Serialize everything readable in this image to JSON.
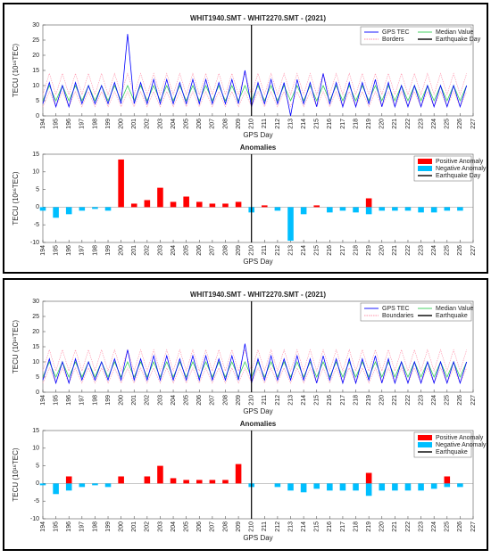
{
  "chart_data": [
    {
      "type": "line",
      "title": "WHIT1940.SMT - WHIT2270.SMT - (2021)",
      "xlabel": "GPS Day",
      "ylabel": "TECU (10¹⁶TEC)",
      "x": [
        194,
        194.5,
        195,
        195.5,
        196,
        196.5,
        197,
        197.5,
        198,
        198.5,
        199,
        199.5,
        200,
        200.5,
        201,
        201.5,
        202,
        202.5,
        203,
        203.5,
        204,
        204.5,
        205,
        205.5,
        206,
        206.5,
        207,
        207.5,
        208,
        208.5,
        209,
        209.5,
        210,
        210.5,
        211,
        211.5,
        212,
        212.5,
        213,
        213.5,
        214,
        214.5,
        215,
        215.5,
        216,
        216.5,
        217,
        217.5,
        218,
        218.5,
        219,
        219.5,
        220,
        220.5,
        221,
        221.5,
        222,
        222.5,
        223,
        223.5,
        224,
        224.5,
        225,
        225.5,
        226,
        226.5
      ],
      "xlim": [
        194,
        227
      ],
      "xticks": [
        194,
        195,
        196,
        197,
        198,
        199,
        200,
        201,
        202,
        203,
        204,
        205,
        206,
        207,
        208,
        209,
        210,
        211,
        212,
        213,
        214,
        215,
        216,
        217,
        218,
        219,
        220,
        221,
        222,
        223,
        224,
        225,
        226,
        227
      ],
      "ylim": [
        0,
        30
      ],
      "yticks": [
        0,
        5,
        10,
        15,
        20,
        25,
        30
      ],
      "legend": "upper right",
      "series": [
        {
          "name": "GPS TEC",
          "color": "#0000ff",
          "values": [
            4,
            11,
            3,
            10,
            3,
            11,
            4,
            10,
            4,
            10,
            4,
            11,
            4,
            27,
            4,
            11,
            4,
            12,
            4,
            12,
            4,
            11,
            4,
            12,
            4,
            12,
            4,
            11,
            4,
            12,
            4,
            15,
            3,
            11,
            4,
            12,
            4,
            11,
            0,
            12,
            4,
            11,
            3,
            14,
            4,
            11,
            3,
            11,
            3,
            11,
            4,
            12,
            3,
            11,
            3,
            10,
            3,
            10,
            3,
            10,
            3,
            10,
            3,
            10,
            3,
            10
          ]
        },
        {
          "name": "Median Value",
          "color": "#33cc55",
          "values": [
            5,
            10,
            5,
            10,
            5,
            10,
            5,
            10,
            5,
            10,
            5,
            10,
            5,
            10,
            5,
            10,
            5,
            10,
            5,
            10,
            5,
            10,
            5,
            10,
            5,
            10,
            5,
            10,
            5,
            10,
            5,
            10,
            5,
            10,
            5,
            10,
            5,
            10,
            5,
            10,
            5,
            10,
            5,
            10,
            5,
            10,
            5,
            10,
            5,
            10,
            5,
            10,
            5,
            10,
            5,
            10,
            5,
            10,
            5,
            10,
            5,
            10,
            5,
            10,
            5,
            10
          ]
        },
        {
          "name": "Borders",
          "color": "#ff8fa8",
          "style": "dotted",
          "values": [
            7,
            14,
            7,
            14,
            7,
            14,
            7,
            14,
            7,
            14,
            7,
            14,
            7,
            14,
            7,
            14,
            7,
            14,
            7,
            14,
            7,
            14,
            7,
            14,
            7,
            14,
            7,
            14,
            7,
            14,
            7,
            14,
            7,
            14,
            7,
            14,
            7,
            14,
            7,
            14,
            7,
            14,
            7,
            14,
            7,
            14,
            7,
            14,
            7,
            14,
            7,
            14,
            7,
            14,
            7,
            14,
            7,
            14,
            7,
            14,
            7,
            14,
            7,
            14,
            7,
            14
          ],
          "lower": [
            3,
            8,
            3,
            8,
            3,
            8,
            3,
            8,
            3,
            8,
            3,
            8,
            3,
            8,
            3,
            8,
            3,
            8,
            3,
            8,
            3,
            8,
            3,
            8,
            3,
            8,
            3,
            8,
            3,
            8,
            3,
            8,
            3,
            8,
            3,
            8,
            3,
            8,
            3,
            8,
            3,
            8,
            3,
            8,
            3,
            8,
            3,
            8,
            3,
            8,
            3,
            8,
            3,
            8,
            3,
            8,
            3,
            8,
            3,
            8,
            3,
            8,
            3,
            8,
            3,
            8
          ]
        }
      ],
      "events": [
        {
          "name": "Earthquake Day",
          "x": 210,
          "color": "#000000"
        }
      ]
    },
    {
      "type": "bar",
      "title": "Anomalies",
      "xlabel": "GPS Day",
      "ylabel": "TECU (10¹⁶TEC)",
      "x": [
        194,
        195,
        196,
        197,
        198,
        199,
        200,
        201,
        202,
        203,
        204,
        205,
        206,
        207,
        208,
        209,
        210,
        211,
        212,
        213,
        214,
        215,
        216,
        217,
        218,
        219,
        220,
        221,
        222,
        223,
        224,
        225,
        226
      ],
      "xlim": [
        194,
        227
      ],
      "xticks": [
        194,
        195,
        196,
        197,
        198,
        199,
        200,
        201,
        202,
        203,
        204,
        205,
        206,
        207,
        208,
        209,
        210,
        211,
        212,
        213,
        214,
        215,
        216,
        217,
        218,
        219,
        220,
        221,
        222,
        223,
        224,
        225,
        226,
        227
      ],
      "ylim": [
        -10,
        15
      ],
      "yticks": [
        -10,
        -5,
        0,
        5,
        10,
        15
      ],
      "legend": "upper right",
      "series": [
        {
          "name": "Positive Anomaly",
          "color": "#ff0000",
          "values": [
            null,
            null,
            null,
            null,
            null,
            null,
            13.5,
            1,
            2,
            5.5,
            1.5,
            3,
            1.5,
            1,
            1,
            1.5,
            null,
            0.5,
            null,
            null,
            null,
            0.5,
            null,
            null,
            null,
            2.5,
            null,
            null,
            null,
            null,
            null,
            null,
            null
          ]
        },
        {
          "name": "Negative Anomaly",
          "color": "#00bfff",
          "values": [
            -1,
            -3,
            -2,
            -1,
            -0.5,
            -1,
            null,
            null,
            null,
            null,
            null,
            null,
            null,
            null,
            null,
            null,
            -1.5,
            null,
            -1,
            -9.5,
            -2,
            null,
            -1.5,
            -1,
            -1.5,
            -2,
            -1,
            -1,
            -1,
            -1.5,
            -1.5,
            -1,
            -1
          ]
        }
      ],
      "events": [
        {
          "name": "Earthquake Day",
          "x": 210,
          "color": "#000000"
        }
      ]
    },
    {
      "type": "line",
      "title": "WHIT1940.SMT - WHIT2270.SMT - (2021)",
      "xlabel": "GPS Day",
      "ylabel": "TECU (10¹⁶TEC)",
      "x": [
        194,
        194.5,
        195,
        195.5,
        196,
        196.5,
        197,
        197.5,
        198,
        198.5,
        199,
        199.5,
        200,
        200.5,
        201,
        201.5,
        202,
        202.5,
        203,
        203.5,
        204,
        204.5,
        205,
        205.5,
        206,
        206.5,
        207,
        207.5,
        208,
        208.5,
        209,
        209.5,
        210,
        210.5,
        211,
        211.5,
        212,
        212.5,
        213,
        213.5,
        214,
        214.5,
        215,
        215.5,
        216,
        216.5,
        217,
        217.5,
        218,
        218.5,
        219,
        219.5,
        220,
        220.5,
        221,
        221.5,
        222,
        222.5,
        223,
        223.5,
        224,
        224.5,
        225,
        225.5,
        226,
        226.5
      ],
      "xlim": [
        194,
        227
      ],
      "xticks": [
        194,
        195,
        196,
        197,
        198,
        199,
        200,
        201,
        202,
        203,
        204,
        205,
        206,
        207,
        208,
        209,
        210,
        211,
        212,
        213,
        214,
        215,
        216,
        217,
        218,
        219,
        220,
        221,
        222,
        223,
        224,
        225,
        226,
        227
      ],
      "ylim": [
        0,
        30
      ],
      "yticks": [
        0,
        5,
        10,
        15,
        20,
        25,
        30
      ],
      "legend": "upper right",
      "series": [
        {
          "name": "GPS TEC",
          "color": "#0000ff",
          "values": [
            4,
            11,
            3,
            10,
            3,
            11,
            4,
            10,
            4,
            10,
            4,
            11,
            4,
            14,
            4,
            11,
            4,
            12,
            4,
            12,
            4,
            11,
            4,
            12,
            4,
            12,
            4,
            11,
            4,
            12,
            4,
            16,
            3,
            11,
            4,
            12,
            4,
            11,
            4,
            12,
            4,
            11,
            3,
            12,
            4,
            11,
            3,
            11,
            3,
            11,
            4,
            12,
            3,
            11,
            3,
            10,
            3,
            10,
            3,
            10,
            3,
            10,
            3,
            10,
            3,
            10
          ]
        },
        {
          "name": "Median Value",
          "color": "#33cc55",
          "values": [
            5,
            10,
            5,
            10,
            5,
            10,
            5,
            10,
            5,
            10,
            5,
            10,
            5,
            10,
            5,
            10,
            5,
            10,
            5,
            10,
            5,
            10,
            5,
            10,
            5,
            10,
            5,
            10,
            5,
            10,
            5,
            10,
            5,
            10,
            5,
            10,
            5,
            10,
            5,
            10,
            5,
            10,
            5,
            10,
            5,
            10,
            5,
            10,
            5,
            10,
            5,
            10,
            5,
            10,
            5,
            10,
            5,
            10,
            5,
            10,
            5,
            10,
            5,
            10,
            5,
            10
          ]
        },
        {
          "name": "Boundaries",
          "color": "#ff8fa8",
          "style": "dotted",
          "values": [
            7,
            14,
            7,
            14,
            7,
            14,
            7,
            14,
            7,
            14,
            7,
            14,
            7,
            14,
            7,
            14,
            7,
            14,
            7,
            14,
            7,
            14,
            7,
            14,
            7,
            14,
            7,
            14,
            7,
            14,
            7,
            14,
            7,
            14,
            7,
            14,
            7,
            14,
            7,
            14,
            7,
            14,
            7,
            14,
            7,
            14,
            7,
            14,
            7,
            14,
            7,
            14,
            7,
            14,
            7,
            14,
            7,
            14,
            7,
            14,
            7,
            14,
            7,
            14,
            7,
            14
          ],
          "lower": [
            3,
            8,
            3,
            8,
            3,
            8,
            3,
            8,
            3,
            8,
            3,
            8,
            3,
            8,
            3,
            8,
            3,
            8,
            3,
            8,
            3,
            8,
            3,
            8,
            3,
            8,
            3,
            8,
            3,
            8,
            3,
            8,
            3,
            8,
            3,
            8,
            3,
            8,
            3,
            8,
            3,
            8,
            3,
            8,
            3,
            8,
            3,
            8,
            3,
            8,
            3,
            8,
            3,
            8,
            3,
            8,
            3,
            8,
            3,
            8,
            3,
            8,
            3,
            8,
            3,
            8
          ]
        }
      ],
      "events": [
        {
          "name": "Earthquake",
          "x": 210,
          "color": "#000000"
        }
      ]
    },
    {
      "type": "bar",
      "title": "Anomalies",
      "xlabel": "GPS Day",
      "ylabel": "TECU (10¹⁶TEC)",
      "x": [
        194,
        195,
        196,
        197,
        198,
        199,
        200,
        201,
        202,
        203,
        204,
        205,
        206,
        207,
        208,
        209,
        210,
        211,
        212,
        213,
        214,
        215,
        216,
        217,
        218,
        219,
        220,
        221,
        222,
        223,
        224,
        225,
        226
      ],
      "xlim": [
        194,
        227
      ],
      "xticks": [
        194,
        195,
        196,
        197,
        198,
        199,
        200,
        201,
        202,
        203,
        204,
        205,
        206,
        207,
        208,
        209,
        210,
        211,
        212,
        213,
        214,
        215,
        216,
        217,
        218,
        219,
        220,
        221,
        222,
        223,
        224,
        225,
        226,
        227
      ],
      "ylim": [
        -10,
        15
      ],
      "yticks": [
        -10,
        -5,
        0,
        5,
        10,
        15
      ],
      "legend": "upper right",
      "series": [
        {
          "name": "Positive Anomaly",
          "color": "#ff0000",
          "values": [
            null,
            null,
            2,
            null,
            null,
            null,
            2,
            null,
            2,
            5,
            1.5,
            1,
            1,
            1,
            1,
            5.5,
            null,
            null,
            null,
            null,
            null,
            null,
            null,
            null,
            null,
            3,
            null,
            null,
            null,
            null,
            null,
            2,
            null
          ]
        },
        {
          "name": "Negative Anomaly",
          "color": "#00bfff",
          "values": [
            -0.5,
            -3,
            -2,
            -1,
            -0.5,
            -1,
            null,
            null,
            null,
            null,
            null,
            null,
            null,
            null,
            null,
            null,
            -1,
            null,
            -1,
            -2,
            -2.5,
            -1.5,
            -2,
            -2,
            -2,
            -3.5,
            -2,
            -2,
            -2,
            -2,
            -1.5,
            -1,
            -1
          ]
        }
      ],
      "events": [
        {
          "name": "Earthquake",
          "x": 210,
          "color": "#000000"
        }
      ]
    }
  ]
}
